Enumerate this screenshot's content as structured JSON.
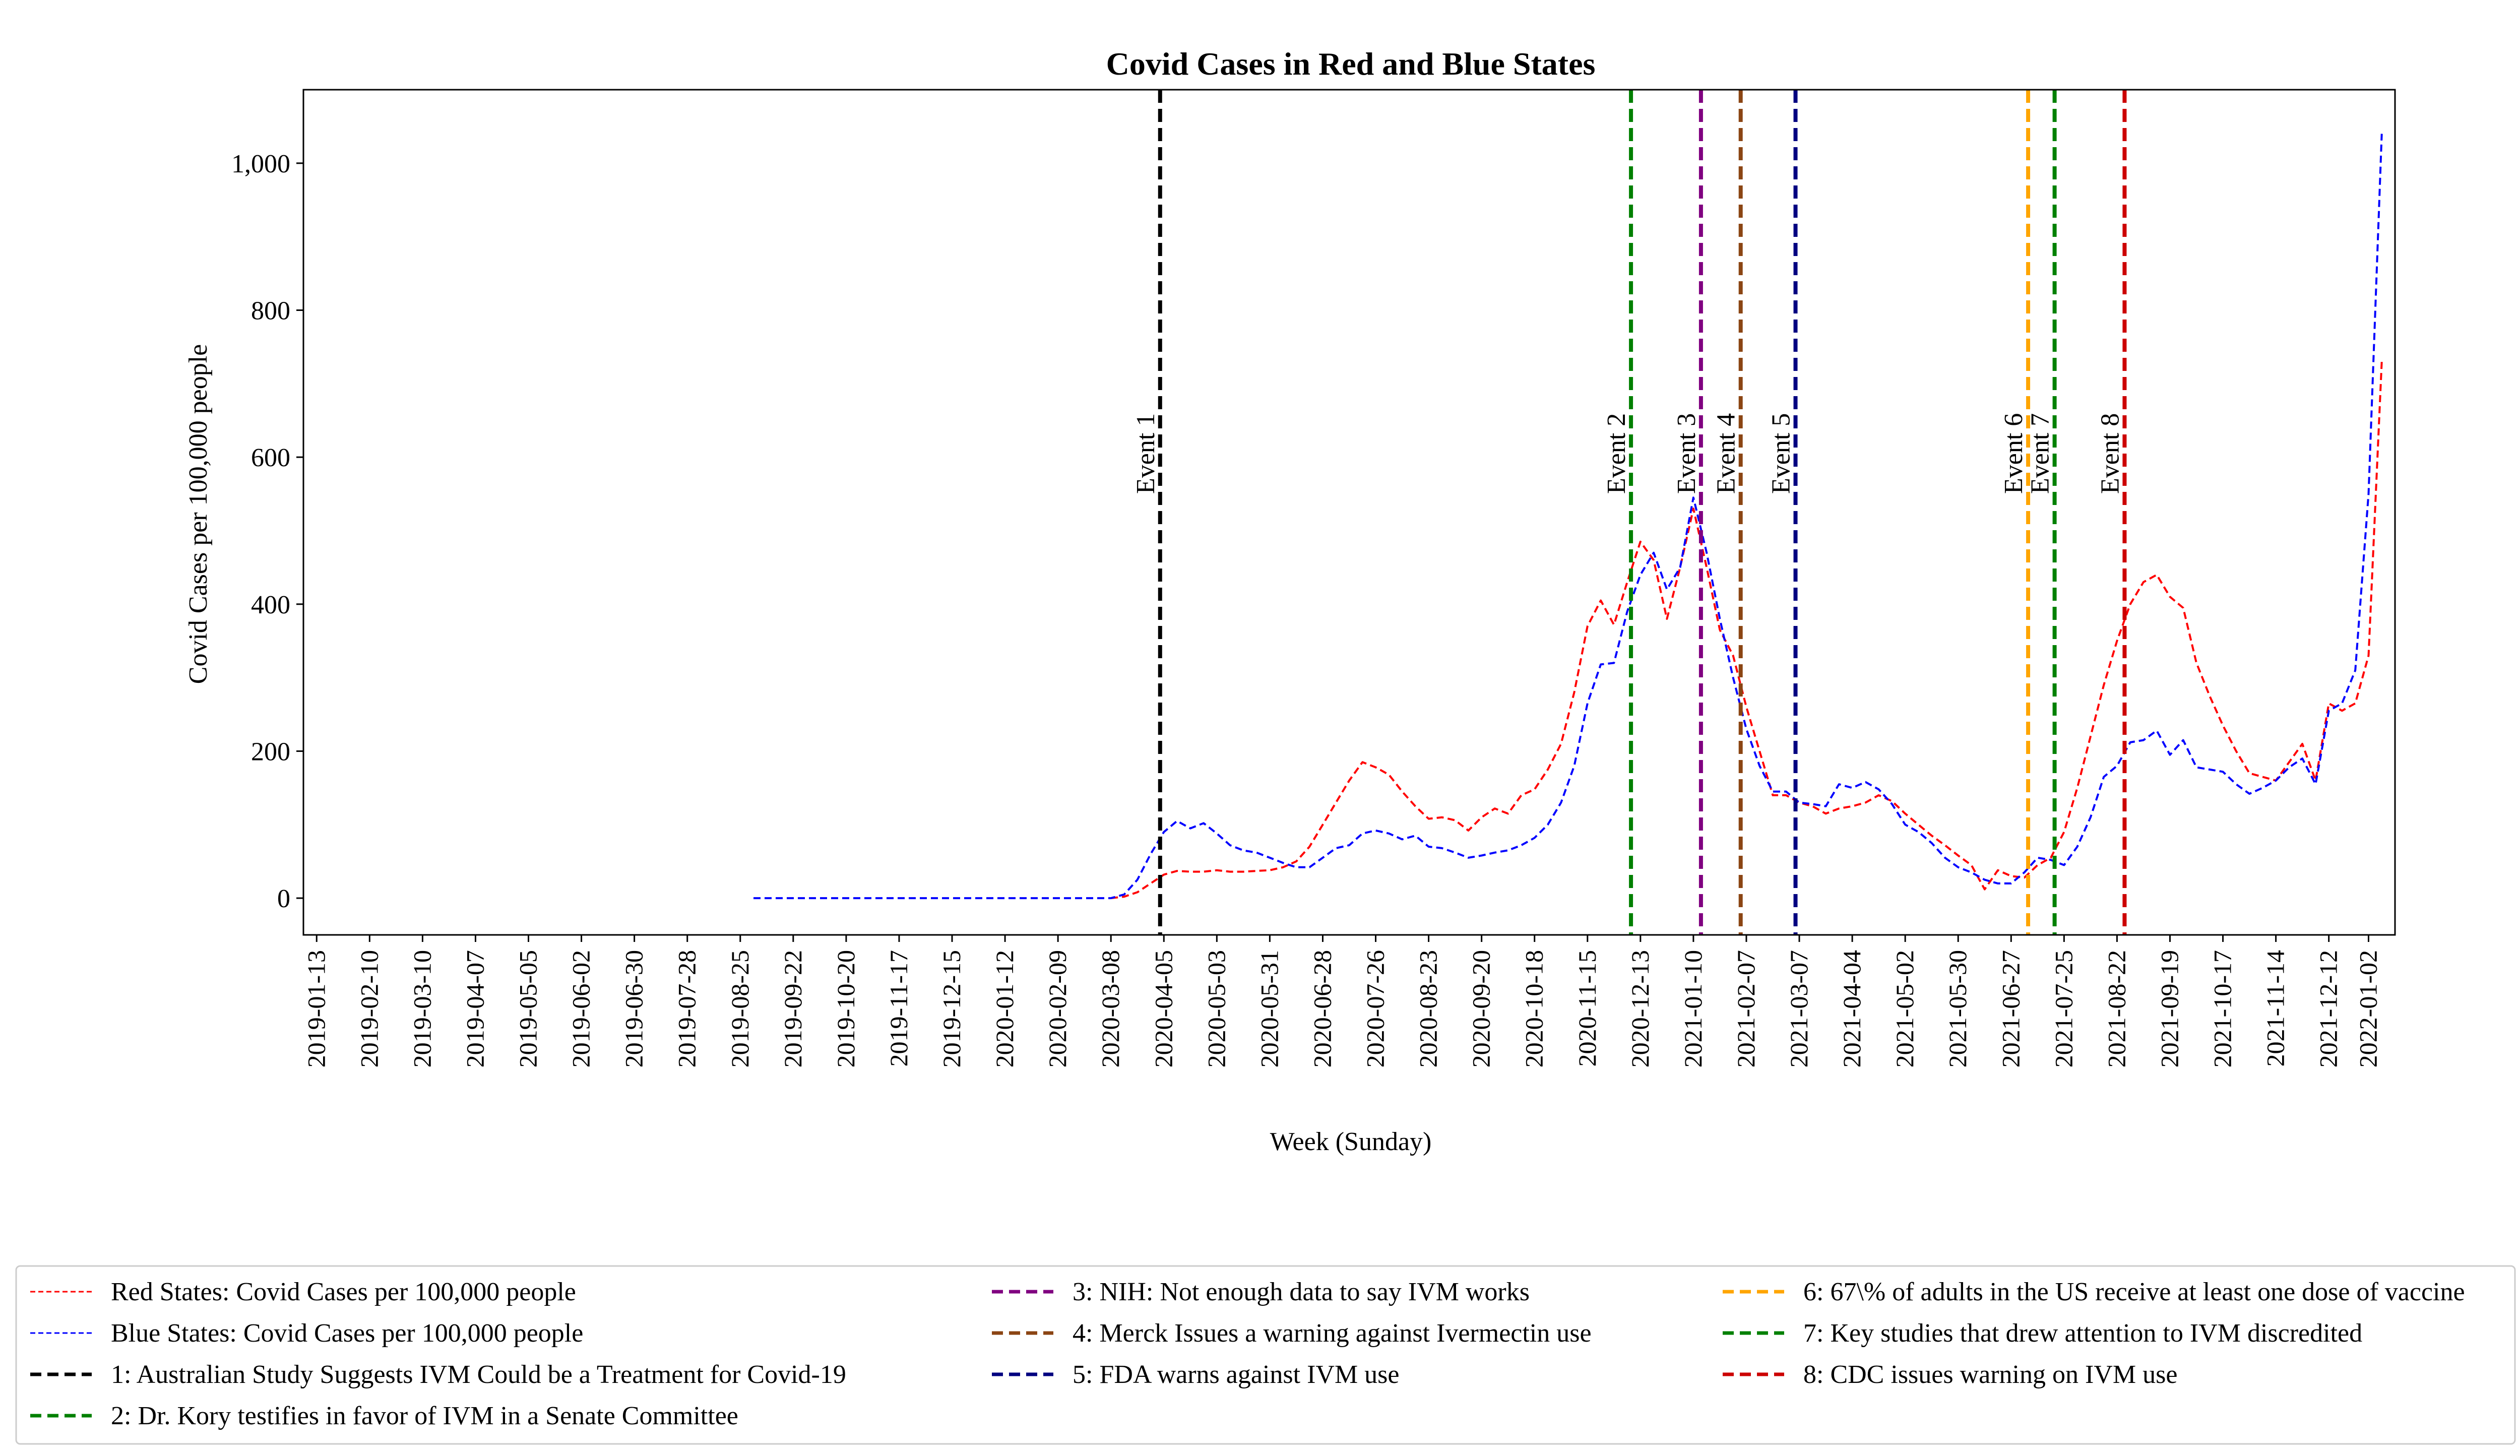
{
  "chart_data": {
    "type": "line",
    "title": "Covid Cases in Red and Blue States",
    "xlabel": "Week (Sunday)",
    "ylabel": "Covid Cases per 100,000 people",
    "ylim": [
      -50,
      1100
    ],
    "xlim": [
      "2019-01-06",
      "2022-01-16"
    ],
    "yticks": [
      0,
      200,
      400,
      600,
      800,
      1000
    ],
    "ytick_labels": [
      "0",
      "200",
      "400",
      "600",
      "800",
      "1,000"
    ],
    "xticks": [
      "2019-01-13",
      "2019-02-10",
      "2019-03-10",
      "2019-04-07",
      "2019-05-05",
      "2019-06-02",
      "2019-06-30",
      "2019-07-28",
      "2019-08-25",
      "2019-09-22",
      "2019-10-20",
      "2019-11-17",
      "2019-12-15",
      "2020-01-12",
      "2020-02-09",
      "2020-03-08",
      "2020-04-05",
      "2020-05-03",
      "2020-05-31",
      "2020-06-28",
      "2020-07-26",
      "2020-08-23",
      "2020-09-20",
      "2020-10-18",
      "2020-11-15",
      "2020-12-13",
      "2021-01-10",
      "2021-02-07",
      "2021-03-07",
      "2021-04-04",
      "2021-05-02",
      "2021-05-30",
      "2021-06-27",
      "2021-07-25",
      "2021-08-22",
      "2021-09-19",
      "2021-10-17",
      "2021-11-14",
      "2021-12-12",
      "2022-01-02"
    ],
    "grid": false,
    "legend_position": "bottom",
    "series": [
      {
        "name": "Red States: Covid Cases per 100,000 people",
        "color": "#ff0000",
        "style": "dashed",
        "points": [
          [
            "2020-03-08",
            0
          ],
          [
            "2020-03-15",
            2
          ],
          [
            "2020-03-22",
            8
          ],
          [
            "2020-03-29",
            20
          ],
          [
            "2020-04-05",
            32
          ],
          [
            "2020-04-12",
            37
          ],
          [
            "2020-04-19",
            36
          ],
          [
            "2020-04-26",
            36
          ],
          [
            "2020-05-03",
            38
          ],
          [
            "2020-05-10",
            36
          ],
          [
            "2020-05-17",
            36
          ],
          [
            "2020-05-24",
            37
          ],
          [
            "2020-05-31",
            38
          ],
          [
            "2020-06-07",
            42
          ],
          [
            "2020-06-14",
            50
          ],
          [
            "2020-06-21",
            70
          ],
          [
            "2020-06-28",
            100
          ],
          [
            "2020-07-05",
            130
          ],
          [
            "2020-07-12",
            160
          ],
          [
            "2020-07-19",
            185
          ],
          [
            "2020-07-26",
            178
          ],
          [
            "2020-08-02",
            168
          ],
          [
            "2020-08-09",
            145
          ],
          [
            "2020-08-16",
            125
          ],
          [
            "2020-08-23",
            108
          ],
          [
            "2020-08-30",
            110
          ],
          [
            "2020-09-06",
            106
          ],
          [
            "2020-09-13",
            92
          ],
          [
            "2020-09-20",
            110
          ],
          [
            "2020-09-27",
            122
          ],
          [
            "2020-10-04",
            115
          ],
          [
            "2020-10-11",
            140
          ],
          [
            "2020-10-18",
            148
          ],
          [
            "2020-10-25",
            175
          ],
          [
            "2020-11-01",
            210
          ],
          [
            "2020-11-08",
            280
          ],
          [
            "2020-11-15",
            370
          ],
          [
            "2020-11-22",
            405
          ],
          [
            "2020-11-29",
            372
          ],
          [
            "2020-12-06",
            430
          ],
          [
            "2020-12-13",
            485
          ],
          [
            "2020-12-20",
            460
          ],
          [
            "2020-12-27",
            380
          ],
          [
            "2021-01-03",
            450
          ],
          [
            "2021-01-10",
            530
          ],
          [
            "2021-01-17",
            450
          ],
          [
            "2021-01-24",
            365
          ],
          [
            "2021-01-31",
            330
          ],
          [
            "2021-02-07",
            260
          ],
          [
            "2021-02-14",
            200
          ],
          [
            "2021-02-21",
            140
          ],
          [
            "2021-02-28",
            140
          ],
          [
            "2021-03-07",
            130
          ],
          [
            "2021-03-14",
            125
          ],
          [
            "2021-03-21",
            115
          ],
          [
            "2021-03-28",
            122
          ],
          [
            "2021-04-04",
            125
          ],
          [
            "2021-04-11",
            130
          ],
          [
            "2021-04-18",
            140
          ],
          [
            "2021-04-25",
            132
          ],
          [
            "2021-05-02",
            115
          ],
          [
            "2021-05-09",
            100
          ],
          [
            "2021-05-16",
            85
          ],
          [
            "2021-05-23",
            72
          ],
          [
            "2021-05-30",
            58
          ],
          [
            "2021-06-06",
            45
          ],
          [
            "2021-06-13",
            12
          ],
          [
            "2021-06-20",
            38
          ],
          [
            "2021-06-27",
            30
          ],
          [
            "2021-07-04",
            28
          ],
          [
            "2021-07-11",
            45
          ],
          [
            "2021-07-18",
            55
          ],
          [
            "2021-07-25",
            90
          ],
          [
            "2021-08-01",
            150
          ],
          [
            "2021-08-08",
            220
          ],
          [
            "2021-08-15",
            290
          ],
          [
            "2021-08-22",
            350
          ],
          [
            "2021-08-29",
            400
          ],
          [
            "2021-09-05",
            430
          ],
          [
            "2021-09-12",
            440
          ],
          [
            "2021-09-19",
            410
          ],
          [
            "2021-09-26",
            395
          ],
          [
            "2021-10-03",
            320
          ],
          [
            "2021-10-10",
            275
          ],
          [
            "2021-10-17",
            235
          ],
          [
            "2021-10-24",
            200
          ],
          [
            "2021-10-31",
            170
          ],
          [
            "2021-11-07",
            165
          ],
          [
            "2021-11-14",
            160
          ],
          [
            "2021-11-21",
            185
          ],
          [
            "2021-11-28",
            210
          ],
          [
            "2021-12-05",
            160
          ],
          [
            "2021-12-12",
            265
          ],
          [
            "2021-12-19",
            255
          ],
          [
            "2021-12-26",
            265
          ],
          [
            "2022-01-02",
            330
          ],
          [
            "2022-01-09",
            730
          ]
        ]
      },
      {
        "name": "Blue States: Covid Cases per 100,000 people",
        "color": "#0000ff",
        "style": "dashed",
        "points": [
          [
            "2019-09-01",
            0
          ],
          [
            "2019-10-01",
            0
          ],
          [
            "2019-11-01",
            0
          ],
          [
            "2019-12-01",
            0
          ],
          [
            "2020-01-01",
            0
          ],
          [
            "2020-02-01",
            0
          ],
          [
            "2020-03-08",
            0
          ],
          [
            "2020-03-15",
            5
          ],
          [
            "2020-03-22",
            25
          ],
          [
            "2020-03-29",
            60
          ],
          [
            "2020-04-05",
            90
          ],
          [
            "2020-04-12",
            105
          ],
          [
            "2020-04-19",
            95
          ],
          [
            "2020-04-26",
            102
          ],
          [
            "2020-05-03",
            88
          ],
          [
            "2020-05-10",
            72
          ],
          [
            "2020-05-17",
            65
          ],
          [
            "2020-05-24",
            62
          ],
          [
            "2020-05-31",
            55
          ],
          [
            "2020-06-07",
            48
          ],
          [
            "2020-06-14",
            42
          ],
          [
            "2020-06-21",
            42
          ],
          [
            "2020-06-28",
            55
          ],
          [
            "2020-07-05",
            68
          ],
          [
            "2020-07-12",
            72
          ],
          [
            "2020-07-19",
            88
          ],
          [
            "2020-07-26",
            92
          ],
          [
            "2020-08-02",
            88
          ],
          [
            "2020-08-09",
            80
          ],
          [
            "2020-08-16",
            85
          ],
          [
            "2020-08-23",
            70
          ],
          [
            "2020-08-30",
            68
          ],
          [
            "2020-09-06",
            62
          ],
          [
            "2020-09-13",
            55
          ],
          [
            "2020-09-20",
            58
          ],
          [
            "2020-09-27",
            62
          ],
          [
            "2020-10-04",
            65
          ],
          [
            "2020-10-11",
            72
          ],
          [
            "2020-10-18",
            82
          ],
          [
            "2020-10-25",
            100
          ],
          [
            "2020-11-01",
            130
          ],
          [
            "2020-11-08",
            180
          ],
          [
            "2020-11-15",
            265
          ],
          [
            "2020-11-22",
            318
          ],
          [
            "2020-11-29",
            320
          ],
          [
            "2020-12-06",
            390
          ],
          [
            "2020-12-13",
            440
          ],
          [
            "2020-12-20",
            470
          ],
          [
            "2020-12-27",
            420
          ],
          [
            "2021-01-03",
            450
          ],
          [
            "2021-01-10",
            545
          ],
          [
            "2021-01-17",
            470
          ],
          [
            "2021-01-24",
            380
          ],
          [
            "2021-01-31",
            300
          ],
          [
            "2021-02-07",
            230
          ],
          [
            "2021-02-14",
            180
          ],
          [
            "2021-02-21",
            145
          ],
          [
            "2021-02-28",
            145
          ],
          [
            "2021-03-07",
            130
          ],
          [
            "2021-03-14",
            128
          ],
          [
            "2021-03-21",
            125
          ],
          [
            "2021-03-28",
            155
          ],
          [
            "2021-04-04",
            150
          ],
          [
            "2021-04-11",
            158
          ],
          [
            "2021-04-18",
            148
          ],
          [
            "2021-04-25",
            128
          ],
          [
            "2021-05-02",
            100
          ],
          [
            "2021-05-09",
            90
          ],
          [
            "2021-05-16",
            75
          ],
          [
            "2021-05-23",
            55
          ],
          [
            "2021-05-30",
            42
          ],
          [
            "2021-06-06",
            35
          ],
          [
            "2021-06-13",
            25
          ],
          [
            "2021-06-20",
            20
          ],
          [
            "2021-06-27",
            20
          ],
          [
            "2021-07-04",
            35
          ],
          [
            "2021-07-11",
            55
          ],
          [
            "2021-07-18",
            52
          ],
          [
            "2021-07-25",
            45
          ],
          [
            "2021-08-01",
            70
          ],
          [
            "2021-08-08",
            110
          ],
          [
            "2021-08-15",
            165
          ],
          [
            "2021-08-22",
            180
          ],
          [
            "2021-08-29",
            212
          ],
          [
            "2021-09-05",
            215
          ],
          [
            "2021-09-12",
            228
          ],
          [
            "2021-09-19",
            195
          ],
          [
            "2021-09-26",
            215
          ],
          [
            "2021-10-03",
            178
          ],
          [
            "2021-10-10",
            175
          ],
          [
            "2021-10-17",
            172
          ],
          [
            "2021-10-24",
            155
          ],
          [
            "2021-10-31",
            142
          ],
          [
            "2021-11-07",
            150
          ],
          [
            "2021-11-14",
            160
          ],
          [
            "2021-11-21",
            178
          ],
          [
            "2021-11-28",
            190
          ],
          [
            "2021-12-05",
            155
          ],
          [
            "2021-12-12",
            255
          ],
          [
            "2021-12-19",
            265
          ],
          [
            "2021-12-26",
            310
          ],
          [
            "2022-01-02",
            550
          ],
          [
            "2022-01-09",
            1040
          ]
        ]
      }
    ],
    "events": [
      {
        "label": "Event 1",
        "legend": "1: Australian Study Suggests IVM Could be a Treatment for Covid-19",
        "date": "2020-04-03",
        "color": "#000000"
      },
      {
        "label": "Event 2",
        "legend": "2: Dr. Kory testifies in favor of IVM in a Senate Committee",
        "date": "2020-12-08",
        "color": "#008000"
      },
      {
        "label": "Event 3",
        "legend": "3: NIH: Not enough data to say IVM works",
        "date": "2021-01-14",
        "color": "#800080"
      },
      {
        "label": "Event 4",
        "legend": "4: Merck Issues a warning against Ivermectin use",
        "date": "2021-02-04",
        "color": "#8b4513"
      },
      {
        "label": "Event 5",
        "legend": "5: FDA warns against IVM use",
        "date": "2021-03-05",
        "color": "#000080"
      },
      {
        "label": "Event 6",
        "legend": "6: 67\\% of adults in the US receive at least one dose of vaccine",
        "date": "2021-07-06",
        "color": "#ffa500"
      },
      {
        "label": "Event 7",
        "legend": "7: Key studies that drew attention to IVM discredited",
        "date": "2021-07-20",
        "color": "#008000"
      },
      {
        "label": "Event 8",
        "legend": "8: CDC issues warning on IVM use",
        "date": "2021-08-26",
        "color": "#cc0000"
      }
    ]
  }
}
